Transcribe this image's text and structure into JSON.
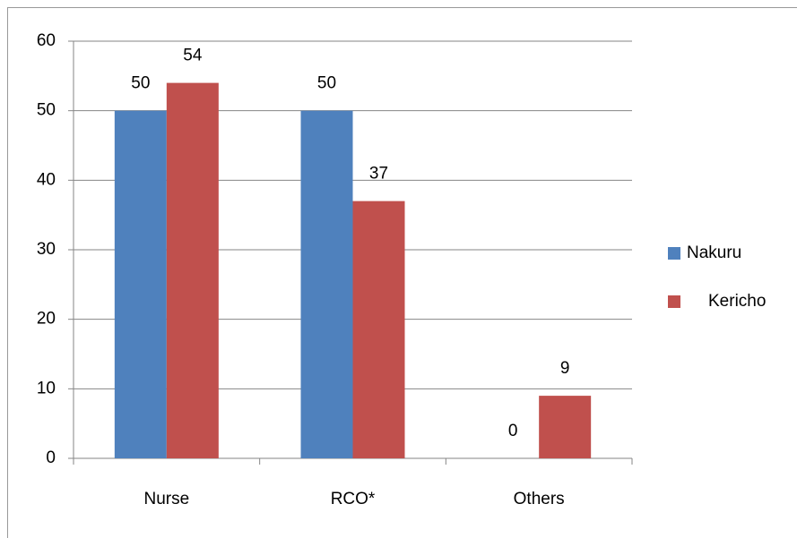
{
  "chart_data": {
    "type": "bar",
    "categories": [
      "Nurse",
      "RCO*",
      "Others"
    ],
    "series": [
      {
        "name": "Nakuru",
        "color": "#4f81bd",
        "values": [
          50,
          50,
          0
        ]
      },
      {
        "name": "Kericho",
        "color": "#c0504d",
        "values": [
          54,
          37,
          9
        ]
      }
    ],
    "ylim": [
      0,
      60
    ],
    "yticks": [
      0,
      10,
      20,
      30,
      40,
      50,
      60
    ],
    "grid": true,
    "legend": "right"
  }
}
